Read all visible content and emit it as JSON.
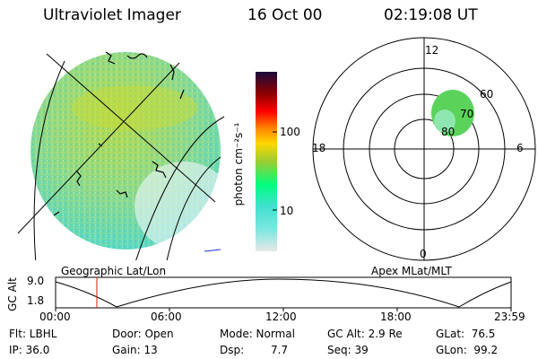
{
  "header": {
    "instrument": "Ultraviolet Imager",
    "date": "16 Oct 00",
    "time": "02:19:08 UT"
  },
  "colorbar": {
    "unit_label": "photon cm⁻²s⁻¹",
    "ticks": [
      "100",
      "10"
    ],
    "colors": [
      "#e8e8e8",
      "#40e0d0",
      "#00ff7f",
      "#9acd32",
      "#ffd700",
      "#ff8c00",
      "#ff0000",
      "#8b0000",
      "#1a0a3a"
    ]
  },
  "polar_plot": {
    "clock_labels": {
      "top": "12",
      "left": "18",
      "right": "6",
      "bottom": "0"
    },
    "lat_labels": [
      "60",
      "70",
      "80"
    ]
  },
  "map_labels": {
    "left": "Geographic Lat/Lon",
    "right": "Apex MLat/MLT"
  },
  "altitude_strip": {
    "axis_label": "GC Alt",
    "y_ticks": [
      "9.0",
      "1.8"
    ],
    "x_ticks": [
      "00:00",
      "06:00",
      "12:00",
      "18:00",
      "23:59"
    ]
  },
  "footer": {
    "filter": "Flt: LBHL",
    "ip": "IP: 36.0",
    "door": "Door: Open",
    "gain": "Gain: 13",
    "mode": "Mode: Normal",
    "dsp_label": "Dsp:",
    "dsp_value": "7.7",
    "gc_alt": "GC Alt: 2.9 Re",
    "seq": "Seq: 39",
    "glat": "GLat:  76.5",
    "glon": "GLon:  99.2"
  }
}
